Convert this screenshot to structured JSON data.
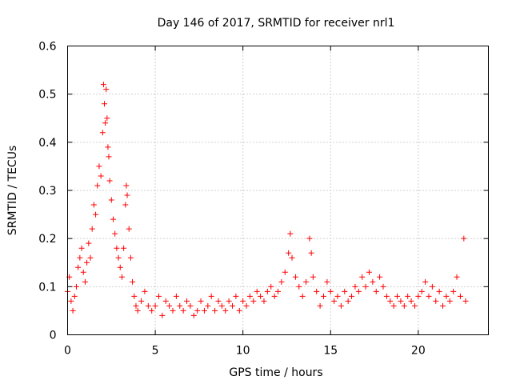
{
  "chart_data": {
    "type": "scatter",
    "title": "Day 146 of 2017, SRMTID for receiver nrl1",
    "xlabel": "GPS time / hours",
    "ylabel": "SRMTID / TECUs",
    "xlim": [
      0,
      24
    ],
    "ylim": [
      0,
      0.6
    ],
    "xticks": [
      0,
      5,
      10,
      15,
      20
    ],
    "yticks": [
      0,
      0.1,
      0.2,
      0.3,
      0.4,
      0.5,
      0.6
    ],
    "xtick_labels": [
      "0",
      "5",
      "10",
      "15",
      "20"
    ],
    "ytick_labels": [
      "0",
      "0.1",
      "0.2",
      "0.3",
      "0.4",
      "0.5",
      "0.6"
    ],
    "grid": true,
    "marker": "+",
    "color": "#ff0000",
    "series": [
      {
        "name": "nrl1",
        "points": [
          [
            0.0,
            0.09
          ],
          [
            0.1,
            0.12
          ],
          [
            0.2,
            0.07
          ],
          [
            0.3,
            0.05
          ],
          [
            0.4,
            0.08
          ],
          [
            0.5,
            0.1
          ],
          [
            0.6,
            0.14
          ],
          [
            0.7,
            0.16
          ],
          [
            0.8,
            0.18
          ],
          [
            0.9,
            0.13
          ],
          [
            1.0,
            0.11
          ],
          [
            1.1,
            0.15
          ],
          [
            1.2,
            0.19
          ],
          [
            1.3,
            0.16
          ],
          [
            1.4,
            0.22
          ],
          [
            1.5,
            0.27
          ],
          [
            1.6,
            0.25
          ],
          [
            1.7,
            0.31
          ],
          [
            1.8,
            0.35
          ],
          [
            1.9,
            0.33
          ],
          [
            2.0,
            0.42
          ],
          [
            2.05,
            0.52
          ],
          [
            2.1,
            0.48
          ],
          [
            2.15,
            0.44
          ],
          [
            2.2,
            0.51
          ],
          [
            2.25,
            0.45
          ],
          [
            2.3,
            0.39
          ],
          [
            2.35,
            0.37
          ],
          [
            2.4,
            0.32
          ],
          [
            2.5,
            0.28
          ],
          [
            2.6,
            0.24
          ],
          [
            2.7,
            0.21
          ],
          [
            2.8,
            0.18
          ],
          [
            2.9,
            0.16
          ],
          [
            3.0,
            0.14
          ],
          [
            3.1,
            0.12
          ],
          [
            3.2,
            0.18
          ],
          [
            3.3,
            0.27
          ],
          [
            3.35,
            0.31
          ],
          [
            3.4,
            0.29
          ],
          [
            3.5,
            0.22
          ],
          [
            3.6,
            0.16
          ],
          [
            3.7,
            0.11
          ],
          [
            3.8,
            0.08
          ],
          [
            3.9,
            0.06
          ],
          [
            4.0,
            0.05
          ],
          [
            4.2,
            0.07
          ],
          [
            4.4,
            0.09
          ],
          [
            4.6,
            0.06
          ],
          [
            4.8,
            0.05
          ],
          [
            5.0,
            0.06
          ],
          [
            5.2,
            0.08
          ],
          [
            5.4,
            0.04
          ],
          [
            5.6,
            0.07
          ],
          [
            5.8,
            0.06
          ],
          [
            6.0,
            0.05
          ],
          [
            6.2,
            0.08
          ],
          [
            6.4,
            0.06
          ],
          [
            6.6,
            0.05
          ],
          [
            6.8,
            0.07
          ],
          [
            7.0,
            0.06
          ],
          [
            7.2,
            0.04
          ],
          [
            7.4,
            0.05
          ],
          [
            7.6,
            0.07
          ],
          [
            7.8,
            0.05
          ],
          [
            8.0,
            0.06
          ],
          [
            8.2,
            0.08
          ],
          [
            8.4,
            0.05
          ],
          [
            8.6,
            0.07
          ],
          [
            8.8,
            0.06
          ],
          [
            9.0,
            0.05
          ],
          [
            9.2,
            0.07
          ],
          [
            9.4,
            0.06
          ],
          [
            9.6,
            0.08
          ],
          [
            9.8,
            0.05
          ],
          [
            10.0,
            0.07
          ],
          [
            10.2,
            0.06
          ],
          [
            10.4,
            0.08
          ],
          [
            10.6,
            0.07
          ],
          [
            10.8,
            0.09
          ],
          [
            11.0,
            0.08
          ],
          [
            11.2,
            0.07
          ],
          [
            11.4,
            0.09
          ],
          [
            11.6,
            0.1
          ],
          [
            11.8,
            0.08
          ],
          [
            12.0,
            0.09
          ],
          [
            12.2,
            0.11
          ],
          [
            12.4,
            0.13
          ],
          [
            12.6,
            0.17
          ],
          [
            12.7,
            0.21
          ],
          [
            12.8,
            0.16
          ],
          [
            13.0,
            0.12
          ],
          [
            13.2,
            0.1
          ],
          [
            13.4,
            0.08
          ],
          [
            13.6,
            0.11
          ],
          [
            13.8,
            0.2
          ],
          [
            13.9,
            0.17
          ],
          [
            14.0,
            0.12
          ],
          [
            14.2,
            0.09
          ],
          [
            14.4,
            0.06
          ],
          [
            14.6,
            0.08
          ],
          [
            14.8,
            0.11
          ],
          [
            15.0,
            0.09
          ],
          [
            15.2,
            0.07
          ],
          [
            15.4,
            0.08
          ],
          [
            15.6,
            0.06
          ],
          [
            15.8,
            0.09
          ],
          [
            16.0,
            0.07
          ],
          [
            16.2,
            0.08
          ],
          [
            16.4,
            0.1
          ],
          [
            16.6,
            0.09
          ],
          [
            16.8,
            0.12
          ],
          [
            17.0,
            0.1
          ],
          [
            17.2,
            0.13
          ],
          [
            17.4,
            0.11
          ],
          [
            17.6,
            0.09
          ],
          [
            17.8,
            0.12
          ],
          [
            18.0,
            0.1
          ],
          [
            18.2,
            0.08
          ],
          [
            18.4,
            0.07
          ],
          [
            18.6,
            0.06
          ],
          [
            18.8,
            0.08
          ],
          [
            19.0,
            0.07
          ],
          [
            19.2,
            0.06
          ],
          [
            19.4,
            0.08
          ],
          [
            19.6,
            0.07
          ],
          [
            19.8,
            0.06
          ],
          [
            20.0,
            0.08
          ],
          [
            20.2,
            0.09
          ],
          [
            20.4,
            0.11
          ],
          [
            20.6,
            0.08
          ],
          [
            20.8,
            0.1
          ],
          [
            21.0,
            0.07
          ],
          [
            21.2,
            0.09
          ],
          [
            21.4,
            0.06
          ],
          [
            21.6,
            0.08
          ],
          [
            21.8,
            0.07
          ],
          [
            22.0,
            0.09
          ],
          [
            22.2,
            0.12
          ],
          [
            22.4,
            0.08
          ],
          [
            22.6,
            0.2
          ],
          [
            22.7,
            0.07
          ]
        ]
      }
    ]
  }
}
